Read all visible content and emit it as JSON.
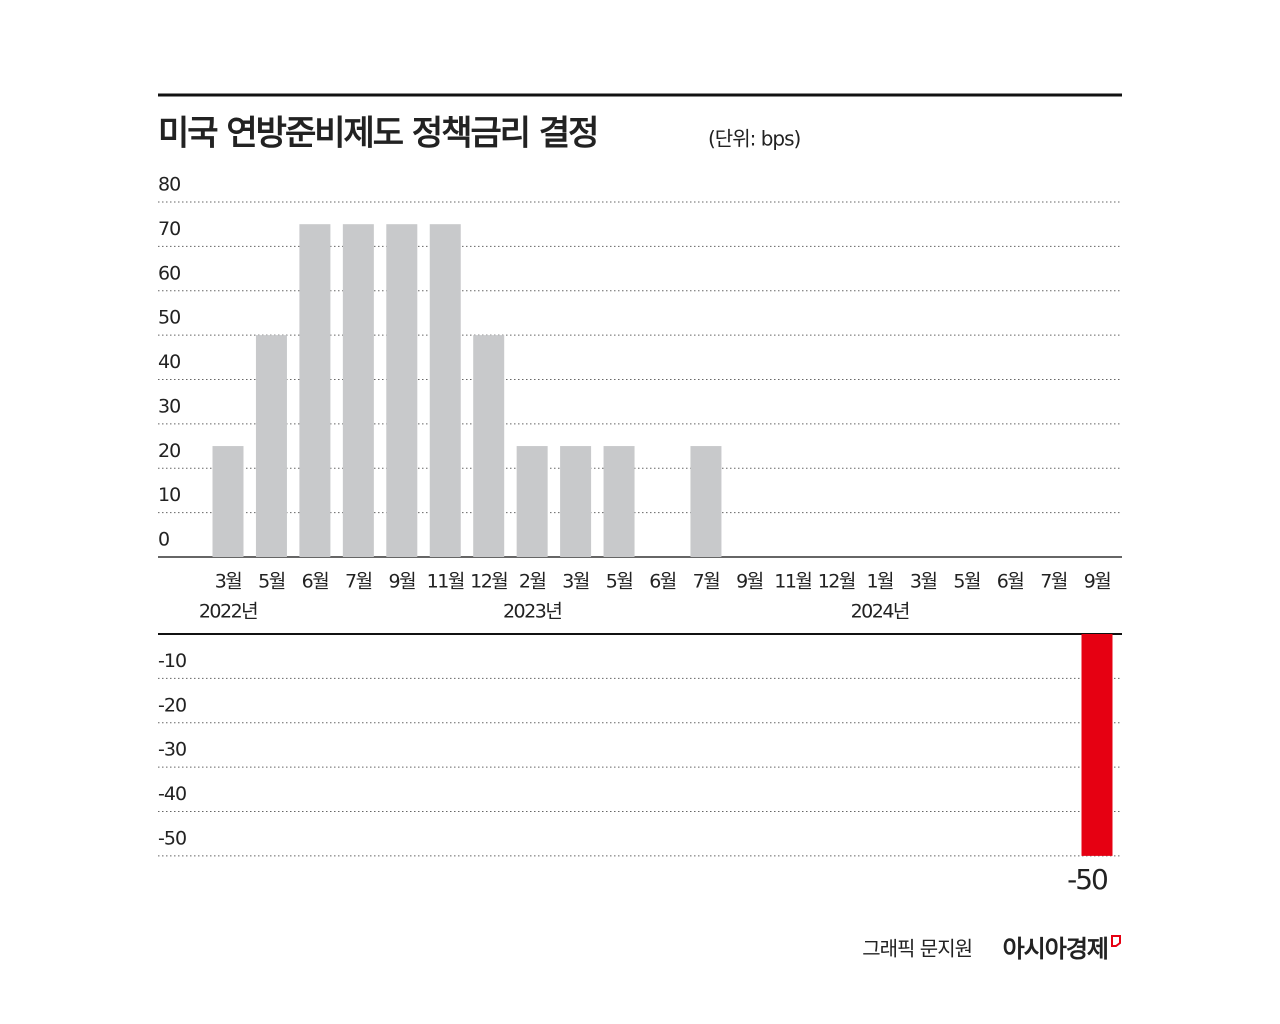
{
  "chart_data": {
    "type": "bar",
    "title": "미국 연방준비제도 정책금리 결정",
    "subtitle": "(단위: bps)",
    "categories": [
      "3월",
      "5월",
      "6월",
      "7월",
      "9월",
      "11월",
      "12월",
      "2월",
      "3월",
      "5월",
      "6월",
      "7월",
      "9월",
      "11월",
      "12월",
      "1월",
      "3월",
      "5월",
      "6월",
      "7월",
      "9월"
    ],
    "years": [
      "2022년",
      "2023년",
      "2024년"
    ],
    "values": [
      25,
      50,
      75,
      75,
      75,
      75,
      50,
      25,
      25,
      25,
      0,
      25,
      0,
      0,
      0,
      0,
      0,
      0,
      0,
      0,
      -50
    ],
    "color": "#c8c9cb",
    "negative_color": "#e60012",
    "ylim": [
      -50,
      80
    ],
    "yticks": [
      -50,
      -40,
      -30,
      -20,
      -10,
      0,
      10,
      20,
      30,
      40,
      50,
      60,
      70,
      80
    ],
    "grid": true,
    "credit": "그래픽 문지원",
    "source": "아시아경제"
  }
}
